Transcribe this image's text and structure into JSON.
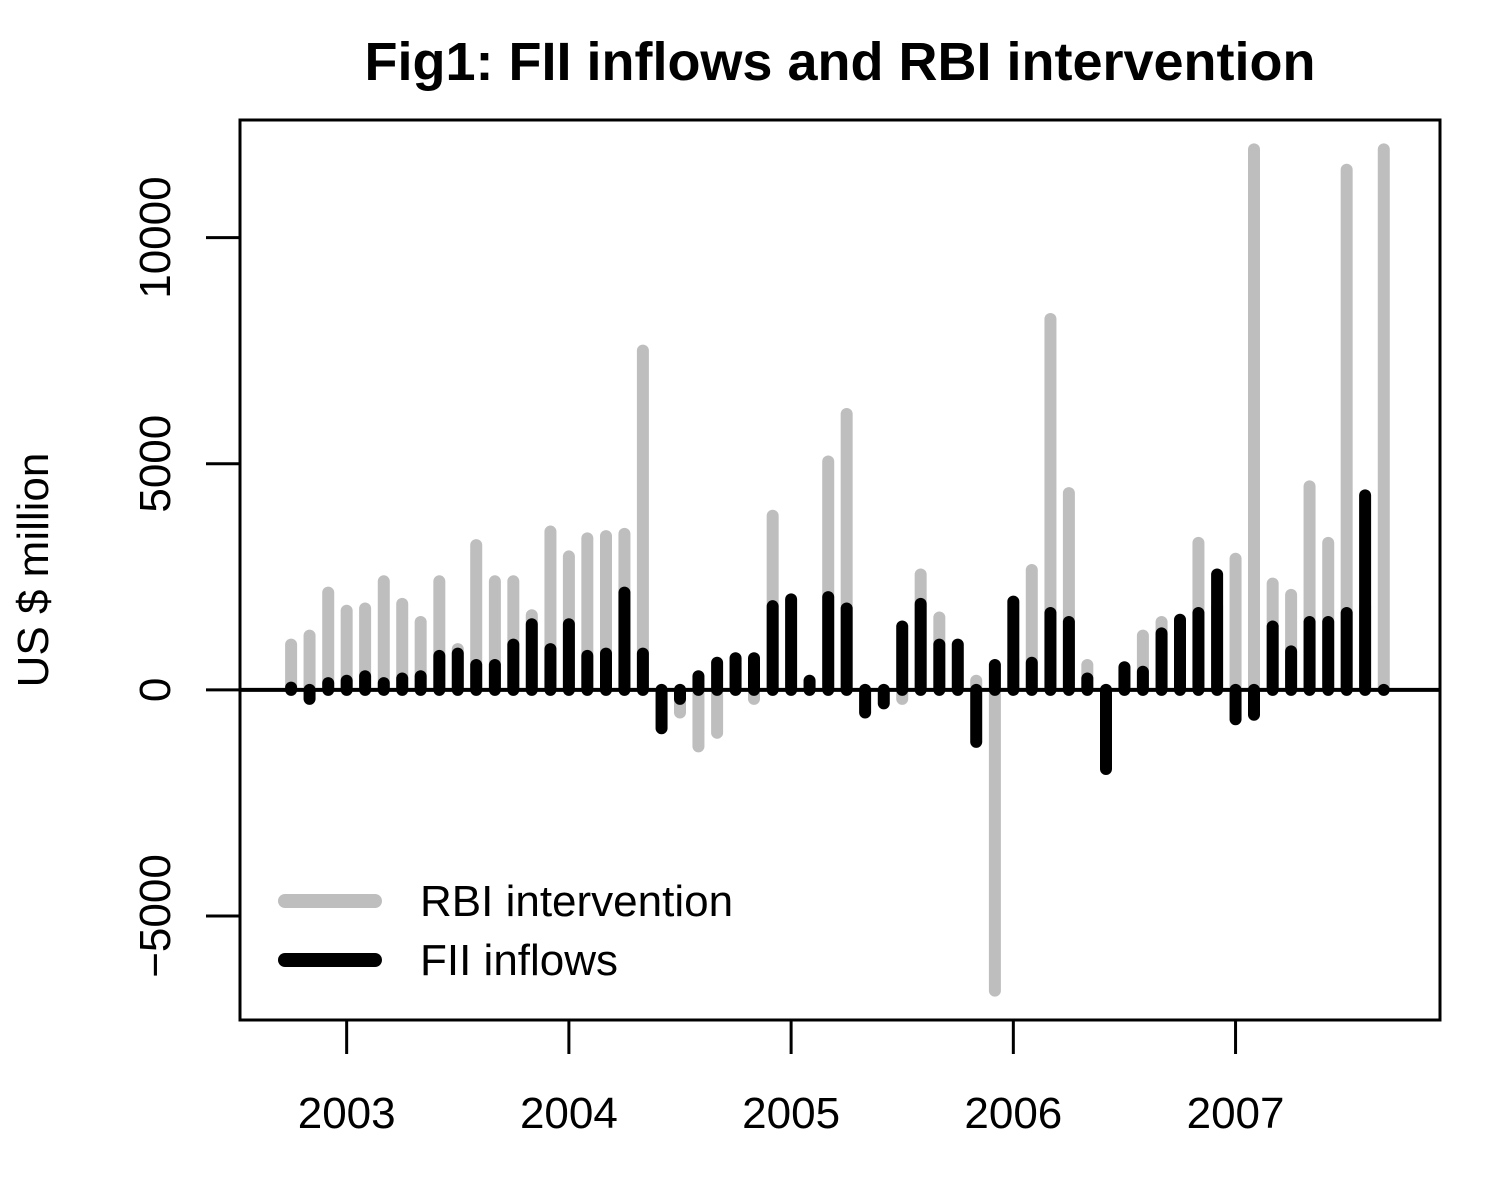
{
  "chart_data": {
    "type": "bar",
    "title": "Fig1: FII inflows and RBI intervention",
    "xlabel": "",
    "ylabel": "US $ million",
    "xlim": [
      2002.52,
      2007.92
    ],
    "ylim": [
      -7300,
      12600
    ],
    "x_ticks": [
      2003,
      2004,
      2005,
      2006,
      2007
    ],
    "y_ticks": [
      -5000,
      0,
      5000,
      10000
    ],
    "grid": false,
    "legend_position": "bottom-left",
    "x": [
      2002.75,
      2002.833,
      2002.917,
      2003.0,
      2003.083,
      2003.167,
      2003.25,
      2003.333,
      2003.417,
      2003.5,
      2003.583,
      2003.667,
      2003.75,
      2003.833,
      2003.917,
      2004.0,
      2004.083,
      2004.167,
      2004.25,
      2004.333,
      2004.417,
      2004.5,
      2004.583,
      2004.667,
      2004.75,
      2004.833,
      2004.917,
      2005.0,
      2005.083,
      2005.167,
      2005.25,
      2005.333,
      2005.417,
      2005.5,
      2005.583,
      2005.667,
      2005.75,
      2005.833,
      2005.917,
      2006.0,
      2006.083,
      2006.167,
      2006.25,
      2006.333,
      2006.417,
      2006.5,
      2006.583,
      2006.667,
      2006.75,
      2006.833,
      2006.917,
      2007.0,
      2007.083,
      2007.167,
      2007.25,
      2007.333,
      2007.417,
      2007.5,
      2007.583,
      2007.667
    ],
    "series": [
      {
        "name": "RBI intervention",
        "color": "#bebebe",
        "values": [
          1000,
          1200,
          2150,
          1750,
          1800,
          2400,
          1900,
          1500,
          2400,
          900,
          3200,
          2400,
          2400,
          1650,
          3500,
          2950,
          3350,
          3400,
          3450,
          7500,
          0,
          -500,
          -1250,
          -950,
          700,
          -200,
          3850,
          0,
          200,
          5050,
          6100,
          0,
          0,
          -200,
          2550,
          1600,
          0,
          200,
          -6650,
          650,
          2650,
          8200,
          4350,
          550,
          0,
          450,
          1200,
          1500,
          0,
          3250,
          1850,
          2900,
          11950,
          2350,
          2100,
          4500,
          3250,
          11500,
          1850,
          11950
        ]
      },
      {
        "name": "FII inflows",
        "color": "#000000",
        "values": [
          50,
          -200,
          150,
          200,
          300,
          150,
          250,
          300,
          750,
          800,
          550,
          550,
          1000,
          1450,
          900,
          1450,
          750,
          800,
          2150,
          800,
          -850,
          -200,
          300,
          600,
          700,
          700,
          1850,
          2000,
          200,
          2050,
          1800,
          -500,
          -300,
          1400,
          1900,
          1000,
          1000,
          -1150,
          550,
          1950,
          600,
          1700,
          1500,
          250,
          -1750,
          500,
          400,
          1250,
          1550,
          1700,
          2550,
          -650,
          -550,
          1400,
          850,
          1500,
          1500,
          1700,
          4300,
          0
        ]
      }
    ]
  }
}
